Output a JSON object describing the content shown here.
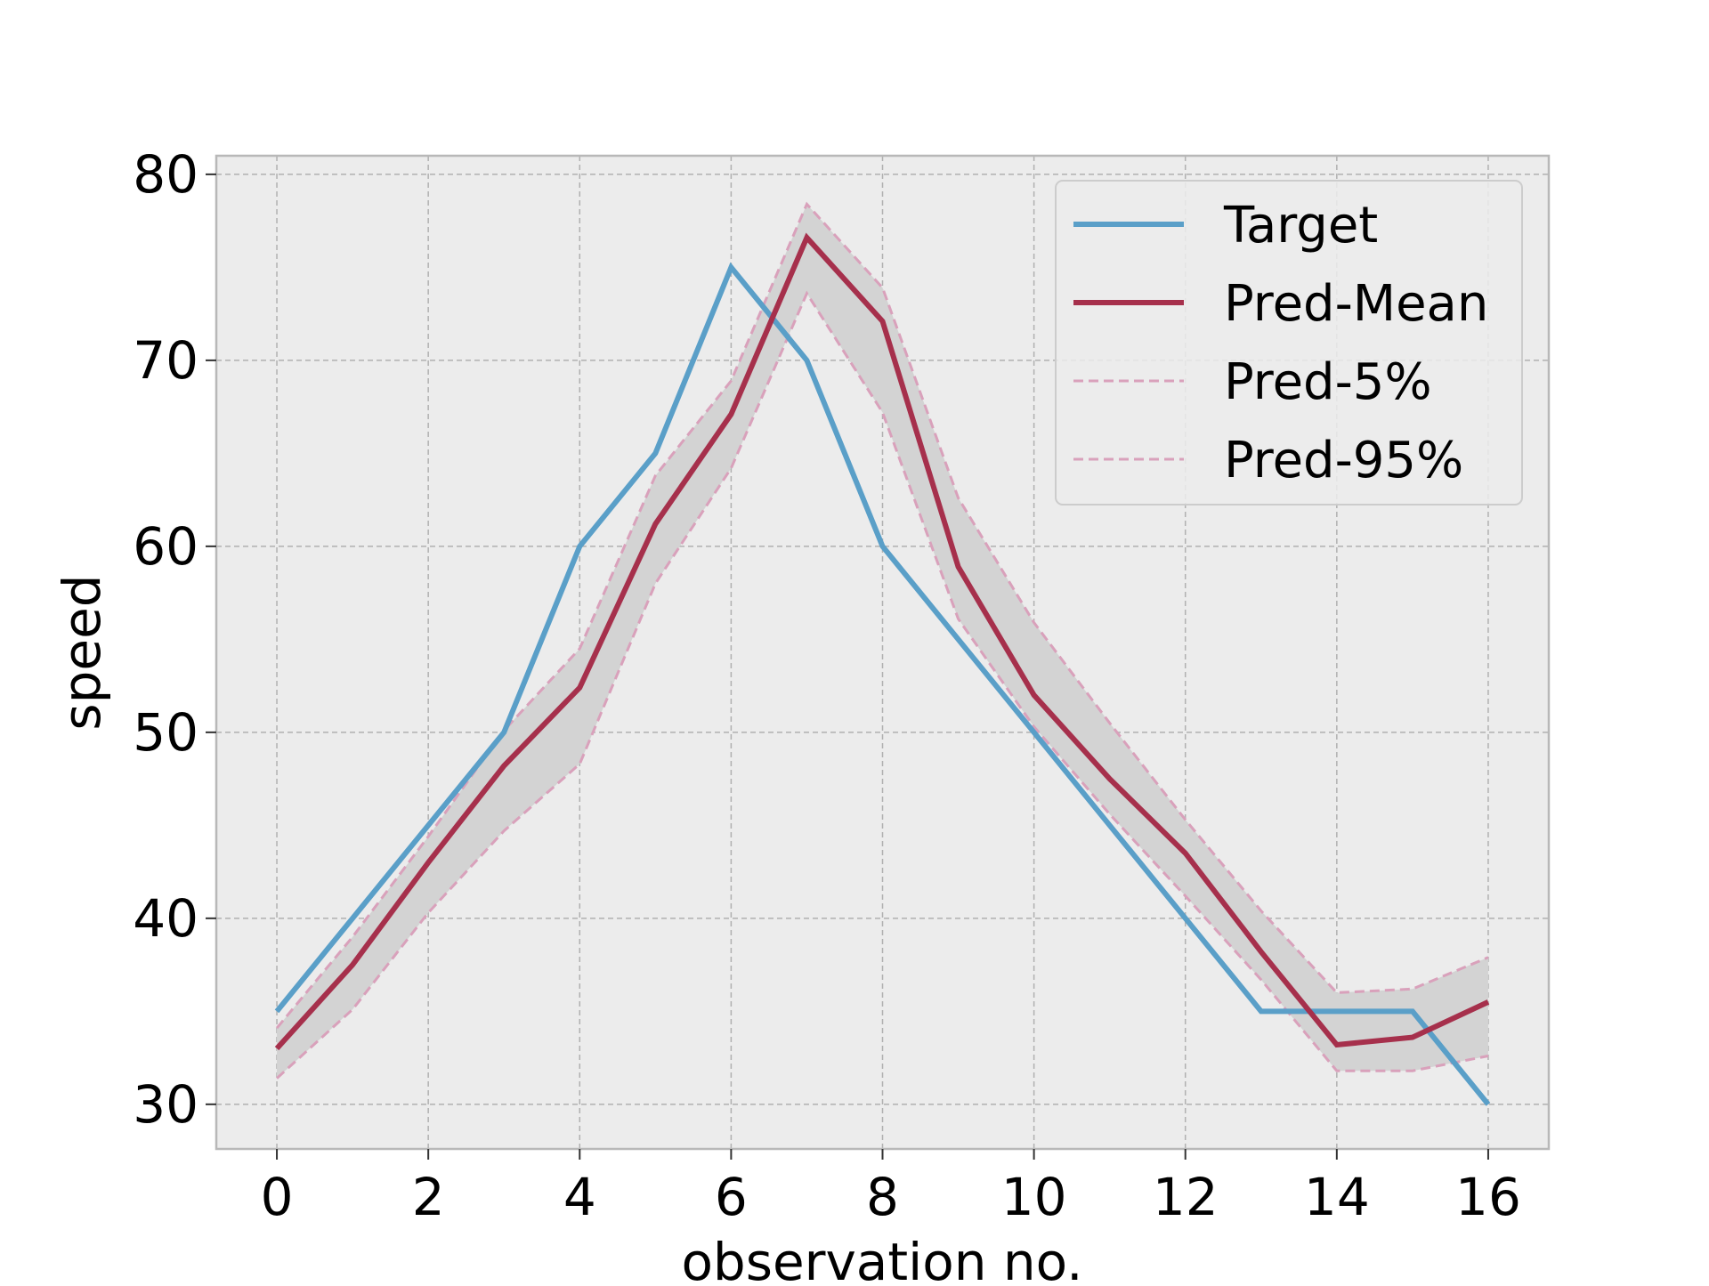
{
  "chart_data": {
    "type": "line",
    "xlabel": "observation no.",
    "ylabel": "speed",
    "xlim": [
      -0.8,
      16.8
    ],
    "ylim": [
      27.6,
      81
    ],
    "x_ticks": [
      0,
      2,
      4,
      6,
      8,
      10,
      12,
      14,
      16
    ],
    "y_ticks": [
      30,
      40,
      50,
      60,
      70,
      80
    ],
    "grid": true,
    "legend_position": "upper right",
    "x": [
      0,
      1,
      2,
      3,
      4,
      5,
      6,
      7,
      8,
      9,
      10,
      11,
      12,
      13,
      14,
      15,
      16
    ],
    "series": [
      {
        "name": "Target",
        "style": "solid",
        "color": "#5a9fc8",
        "values": [
          35,
          40,
          45,
          50,
          60,
          65,
          75,
          70,
          60,
          55,
          50,
          45,
          40,
          35,
          35,
          35,
          30
        ]
      },
      {
        "name": "Pred-Mean",
        "style": "solid",
        "color": "#a6304c",
        "values": [
          33,
          37.5,
          43,
          48.2,
          52.4,
          61.2,
          67.1,
          76.6,
          72.1,
          58.9,
          52,
          47.5,
          43.5,
          38.2,
          33.2,
          33.6,
          35.5
        ]
      },
      {
        "name": "Pred-5%",
        "style": "dashed",
        "color": "#d9a1bb",
        "values": [
          31.4,
          35.1,
          40.3,
          44.7,
          48.3,
          58,
          64.2,
          73.6,
          67.2,
          56.1,
          50.3,
          45.6,
          41.2,
          36.7,
          31.8,
          31.8,
          32.6
        ]
      },
      {
        "name": "Pred-95%",
        "style": "dashed",
        "color": "#d9a1bb",
        "values": [
          34.1,
          39,
          44.4,
          50.1,
          54.5,
          63.8,
          68.9,
          78.4,
          73.9,
          62.6,
          55.9,
          50.5,
          45.3,
          40.4,
          36,
          36.2,
          37.9
        ]
      }
    ],
    "band": {
      "between": [
        "Pred-5%",
        "Pred-95%"
      ],
      "color": "#d3d3d3"
    },
    "colors": {
      "plot_background": "#ececec",
      "grid": "#b0b0b0",
      "spine": "#b8b8b8",
      "legend_background": "#ececec"
    }
  }
}
